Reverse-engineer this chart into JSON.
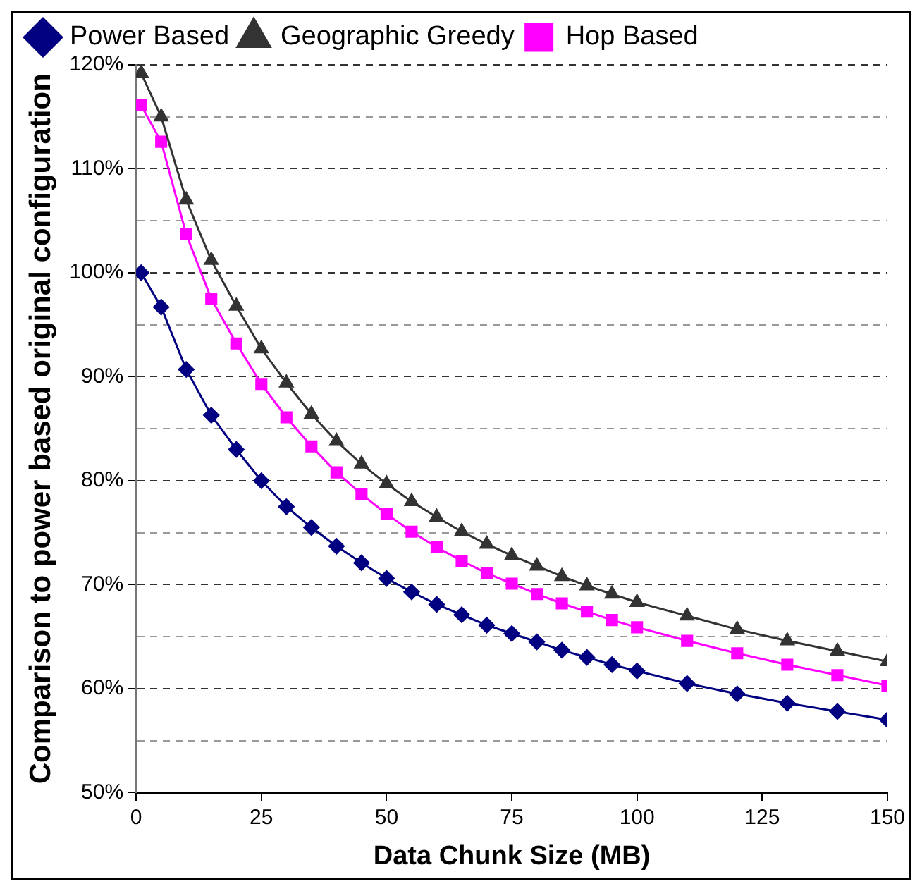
{
  "chart_data": {
    "type": "line",
    "xlabel": "Data Chunk Size (MB)",
    "ylabel": "Comparison to power based original configuration",
    "x": [
      1,
      5,
      10,
      15,
      20,
      25,
      30,
      35,
      40,
      45,
      50,
      55,
      60,
      65,
      70,
      75,
      80,
      85,
      90,
      95,
      100,
      110,
      120,
      130,
      140,
      150
    ],
    "xlim": [
      0,
      150
    ],
    "xticks": [
      0,
      25,
      50,
      75,
      100,
      125,
      150
    ],
    "ylim": [
      50,
      120
    ],
    "yticks": [
      {
        "value": 50,
        "label": "50%"
      },
      {
        "value": 55,
        "label": null
      },
      {
        "value": 60,
        "label": "60%"
      },
      {
        "value": 65,
        "label": null
      },
      {
        "value": 70,
        "label": "70%"
      },
      {
        "value": 75,
        "label": null
      },
      {
        "value": 80,
        "label": "80%"
      },
      {
        "value": 85,
        "label": null
      },
      {
        "value": 90,
        "label": "90%"
      },
      {
        "value": 95,
        "label": null
      },
      {
        "value": 100,
        "label": "100%"
      },
      {
        "value": 105,
        "label": null
      },
      {
        "value": 110,
        "label": "110%"
      },
      {
        "value": 115,
        "label": null
      },
      {
        "value": 120,
        "label": "120%"
      }
    ],
    "grid": "y",
    "legend": "top",
    "line_style": "solid",
    "series": [
      {
        "name": "Power Based",
        "color": "#000080",
        "marker": "diamond",
        "values": [
          100,
          96.7,
          90.7,
          86.3,
          83.0,
          80.0,
          77.5,
          75.5,
          73.7,
          72.1,
          70.6,
          69.3,
          68.1,
          67.1,
          66.1,
          65.3,
          64.5,
          63.7,
          63.0,
          62.3,
          61.7,
          60.5,
          59.5,
          58.6,
          57.8,
          57.0
        ]
      },
      {
        "name": "Geographic Greedy",
        "color": "#333333",
        "marker": "triangle",
        "values": [
          119.2,
          115.0,
          107.0,
          101.2,
          96.8,
          92.7,
          89.4,
          86.4,
          83.8,
          81.6,
          79.7,
          78.0,
          76.5,
          75.1,
          73.9,
          72.8,
          71.8,
          70.8,
          69.9,
          69.1,
          68.3,
          67.0,
          65.7,
          64.6,
          63.6,
          62.6
        ]
      },
      {
        "name": "Hop Based",
        "color": "#ff00ff",
        "marker": "square",
        "values": [
          116.1,
          112.6,
          103.7,
          97.5,
          93.2,
          89.3,
          86.1,
          83.3,
          80.8,
          78.7,
          76.8,
          75.1,
          73.6,
          72.3,
          71.1,
          70.1,
          69.1,
          68.2,
          67.4,
          66.6,
          65.9,
          64.6,
          63.4,
          62.3,
          61.3,
          60.3
        ]
      }
    ]
  }
}
